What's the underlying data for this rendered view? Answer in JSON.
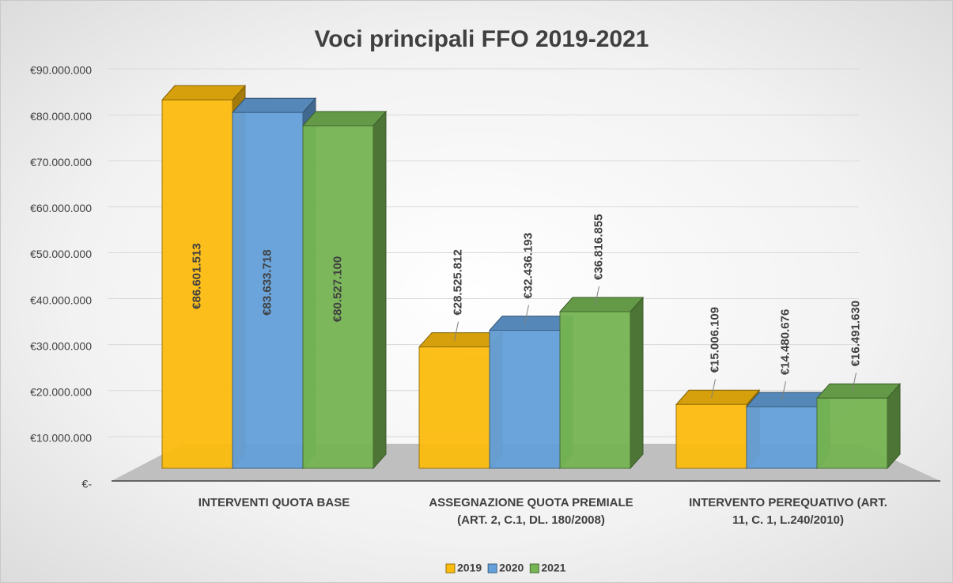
{
  "chart_data": {
    "type": "bar3d",
    "title": "Voci principali FFO 2019-2021",
    "categories": [
      "INTERVENTI QUOTA BASE",
      "ASSEGNAZIONE QUOTA PREMIALE (ART. 2, C.1, DL. 180/2008)",
      "INTERVENTO PEREQUATIVO (ART. 11, C. 1, L.240/2010)"
    ],
    "series": [
      {
        "name": "2019",
        "color": "#fcbc0f",
        "values": [
          86601513,
          28525812,
          15006109
        ],
        "value_labels": [
          "€86.601.513",
          "€28.525.812",
          "€15.006.109"
        ]
      },
      {
        "name": "2020",
        "color": "#64a0da",
        "values": [
          83633718,
          32436193,
          14480676
        ],
        "value_labels": [
          "€83.633.718",
          "€32.436.193",
          "€14.480.676"
        ]
      },
      {
        "name": "2021",
        "color": "#76b553",
        "values": [
          80527100,
          36816855,
          16491630
        ],
        "value_labels": [
          "€80.527.100",
          "€36.816.855",
          "€16.491.630"
        ]
      }
    ],
    "ylim": [
      0,
      90000000
    ],
    "yticks": [
      {
        "value": 0,
        "label": "€-"
      },
      {
        "value": 10000000,
        "label": "€10.000.000"
      },
      {
        "value": 20000000,
        "label": "€20.000.000"
      },
      {
        "value": 30000000,
        "label": "€30.000.000"
      },
      {
        "value": 40000000,
        "label": "€40.000.000"
      },
      {
        "value": 50000000,
        "label": "€50.000.000"
      },
      {
        "value": 60000000,
        "label": "€60.000.000"
      },
      {
        "value": 70000000,
        "label": "€70.000.000"
      },
      {
        "value": 80000000,
        "label": "€80.000.000"
      },
      {
        "value": 90000000,
        "label": "€90.000.000"
      }
    ],
    "grid": true,
    "legend": "bottom"
  }
}
